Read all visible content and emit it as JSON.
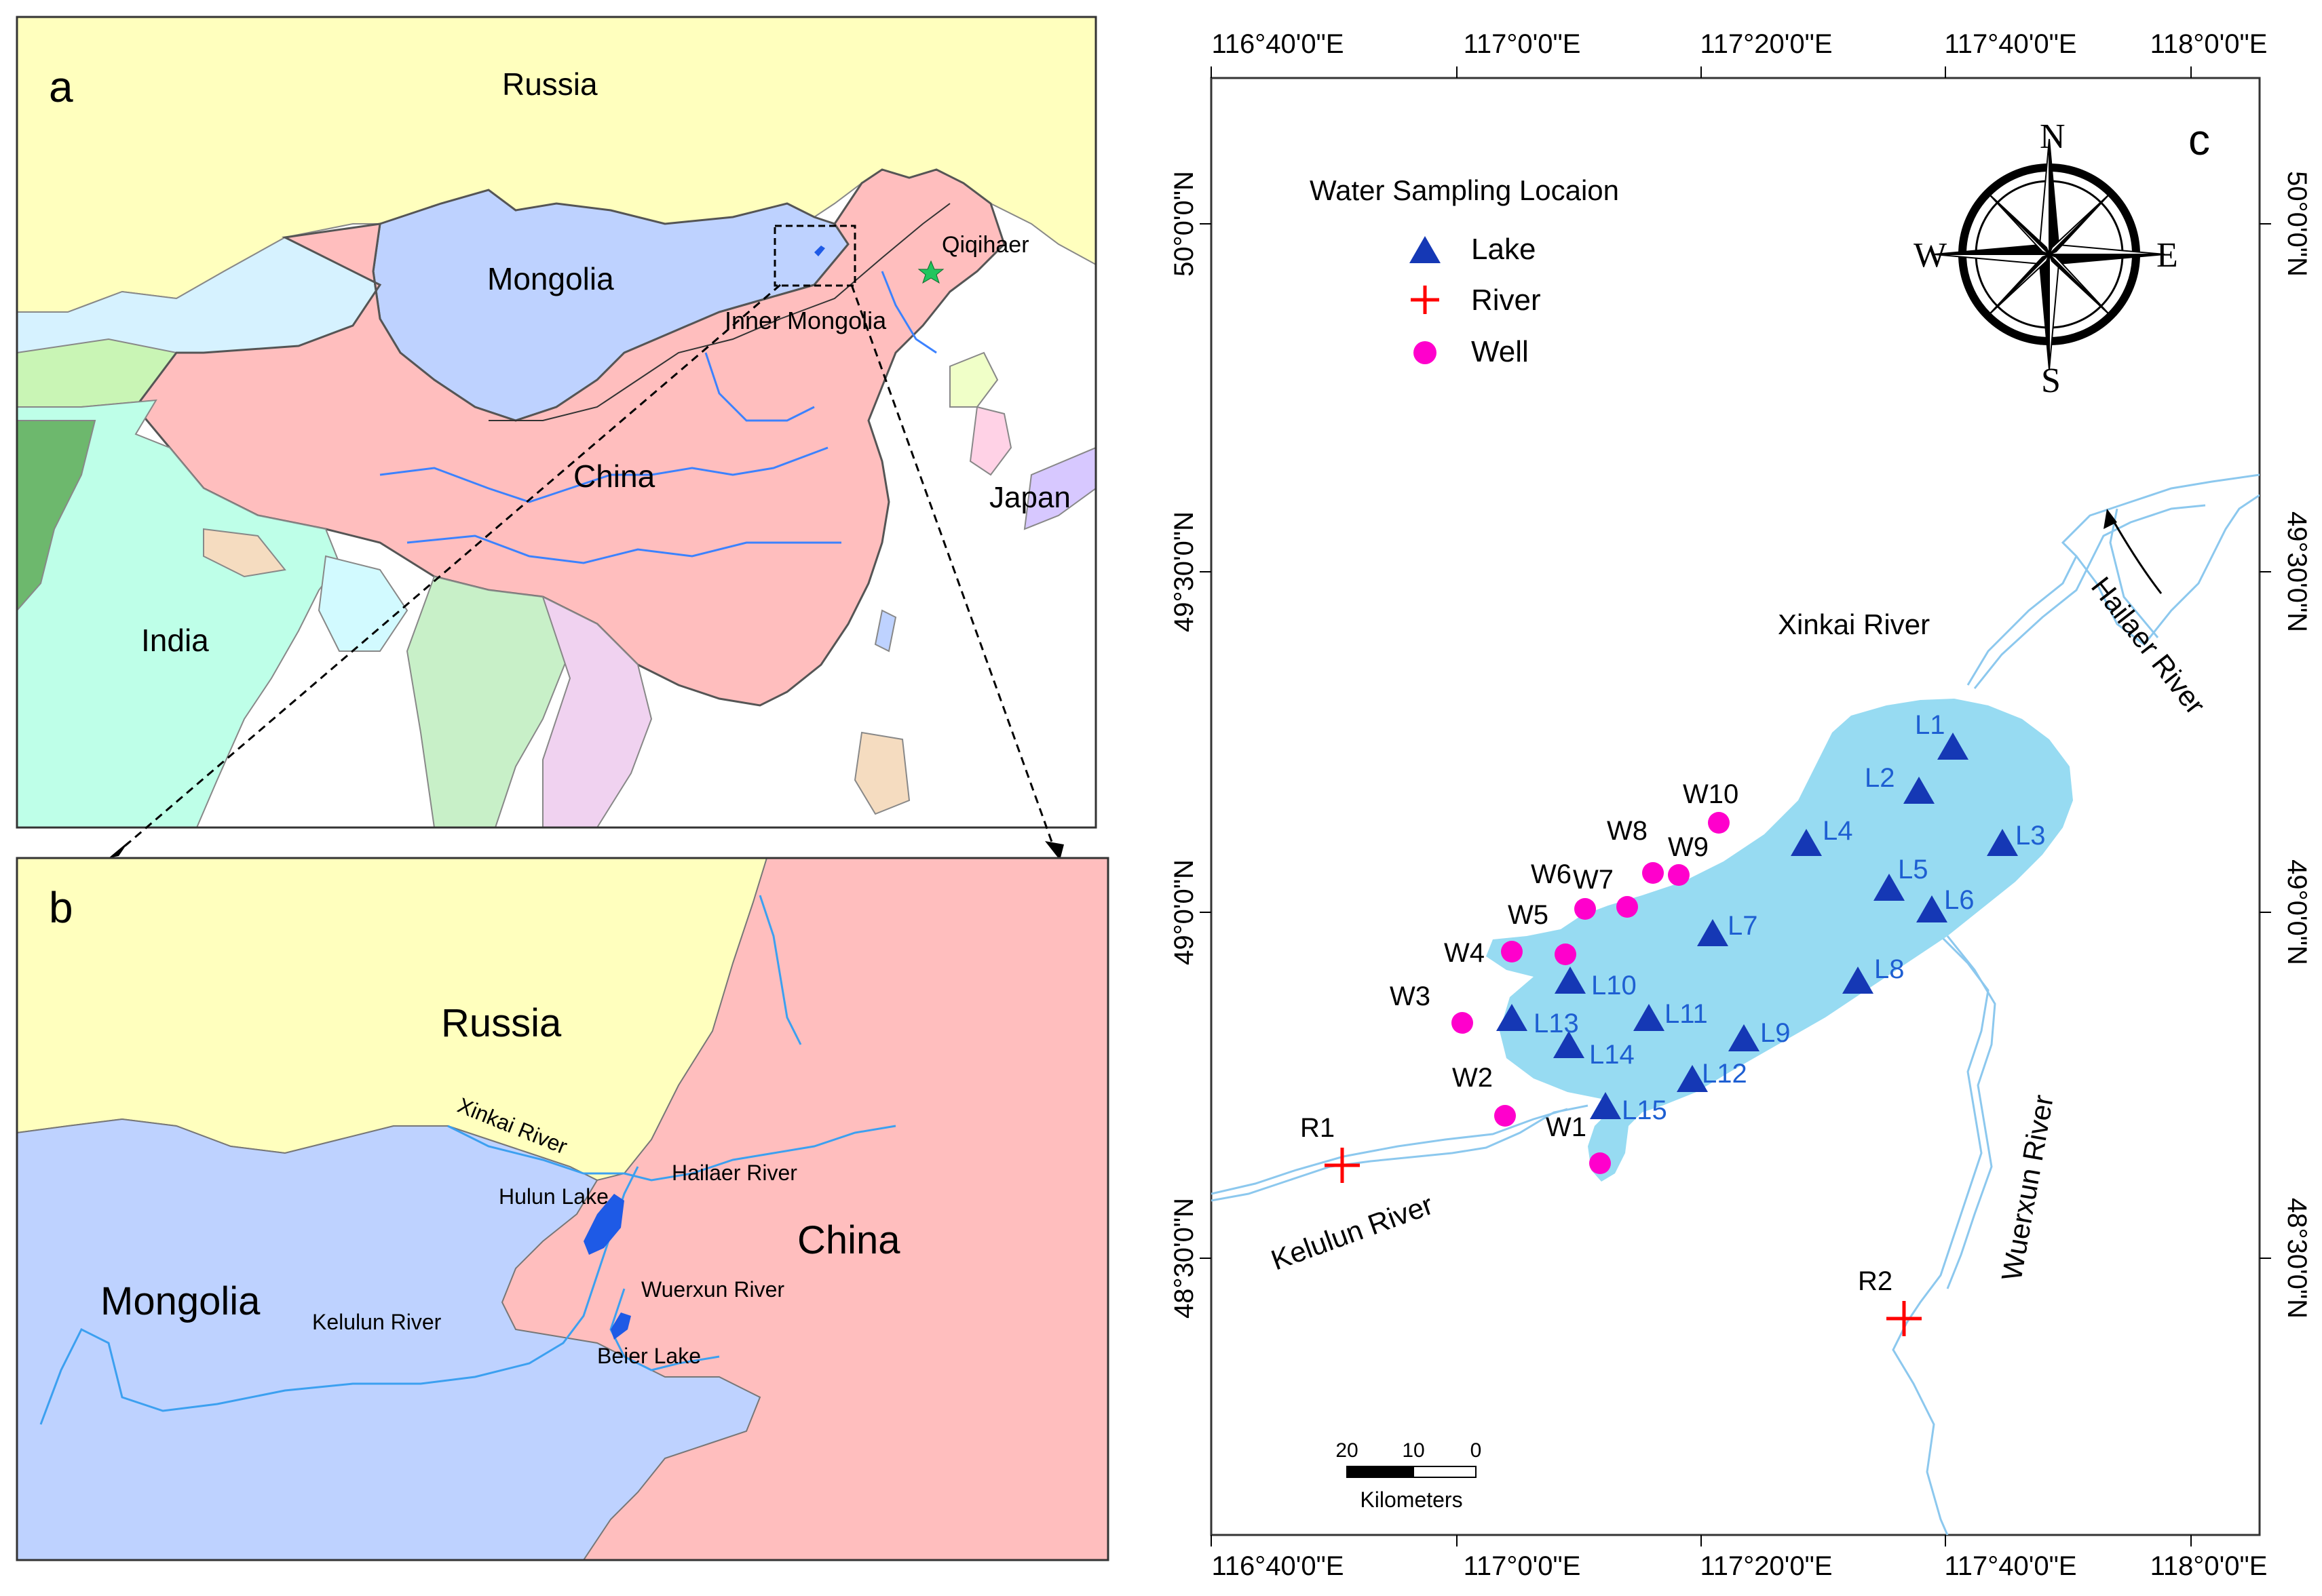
{
  "panel_a": {
    "letter": "a",
    "labels": {
      "russia": "Russia",
      "mongolia": "Mongolia",
      "china": "China",
      "india": "India",
      "japan": "Japan",
      "qiqihaer": "Qiqihaer",
      "inner_mongolia": "Inner Mongolia"
    },
    "colors": {
      "russia": "#FFFFBE",
      "mongolia": "#BED2FF",
      "china": "#FFBEBE",
      "india": "#BEFFE8",
      "ocean": "#FFFFFF",
      "river": "#3C82FF",
      "star": "#22C55E"
    }
  },
  "panel_b": {
    "letter": "b",
    "labels": {
      "russia": "Russia",
      "mongolia": "Mongolia",
      "china": "China",
      "xinkai_river": "Xinkai River",
      "hailaer_river": "Hailaer River",
      "hulun_lake": "Hulun Lake",
      "wuerxun_river": "Wuerxun River",
      "kelulun_river": "Kelulun River",
      "beier_lake": "Beier Lake"
    },
    "colors": {
      "lake": "#1E5AE6",
      "river": "#3CA0F0"
    }
  },
  "panel_c": {
    "letter": "c",
    "top_ticks": [
      "116°40'0\"E",
      "117°0'0\"E",
      "117°20'0\"E",
      "117°40'0\"E",
      "118°0'0\"E"
    ],
    "bottom_ticks": [
      "116°40'0\"E",
      "117°0'0\"E",
      "117°20'0\"E",
      "117°40'0\"E",
      "118°0'0\"E"
    ],
    "left_ticks": [
      "50°0'0\"N",
      "49°30'0\"N",
      "49°0'0\"N",
      "48°30'0\"N"
    ],
    "right_ticks": [
      "50°0'0\"N",
      "49°30'0\"N",
      "49°0'0\"N",
      "48°30'0\"N"
    ],
    "legend": {
      "title": "Water Sampling Locaion",
      "items": [
        {
          "label": "Lake",
          "symbol": "triangle",
          "color": "#1538B5"
        },
        {
          "label": "River",
          "symbol": "cross",
          "color": "#FF0000"
        },
        {
          "label": "Well",
          "symbol": "circle",
          "color": "#FF00CC"
        }
      ]
    },
    "compass": {
      "n": "N",
      "s": "S",
      "e": "E",
      "w": "W"
    },
    "river_labels": {
      "xinkai": "Xinkai River",
      "hailaer": "Hailaer River",
      "kelulun": "Kelulun River",
      "wuerxun": "Wuerxun River"
    },
    "scale_bar": {
      "ticks": [
        "20",
        "10",
        "0"
      ],
      "unit": "Kilometers"
    },
    "lake_sites": [
      "L1",
      "L2",
      "L3",
      "L4",
      "L5",
      "L6",
      "L7",
      "L8",
      "L9",
      "L10",
      "L11",
      "L12",
      "L13",
      "L14",
      "L15"
    ],
    "well_sites": [
      "W1",
      "W2",
      "W3",
      "W4",
      "W5",
      "W6",
      "W7",
      "W8",
      "W9",
      "W10"
    ],
    "river_sites": [
      "R1",
      "R2"
    ],
    "colors": {
      "lake_fill": "#97DBF2",
      "river_line": "#8CC8EE",
      "lake_label": "#1E5FD2",
      "site_label": "#000000"
    }
  }
}
